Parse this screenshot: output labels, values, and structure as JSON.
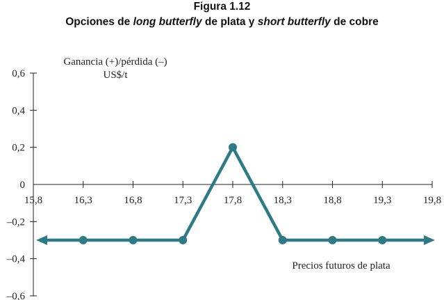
{
  "header": {
    "title": "Figura 1.12",
    "subtitle_parts": [
      "Opciones de ",
      "long butterfly",
      " de plata y ",
      "short butterfly",
      " de cobre"
    ]
  },
  "chart_data": {
    "type": "line",
    "title": "Figura 1.12",
    "subtitle": "Opciones de long butterfly de plata y short butterfly de cobre",
    "ylabel_line1": "Ganancia (+)/pérdida (–)",
    "ylabel_line2": "US$/t",
    "xlabel": "Precios futuros de plata",
    "x_ticks": [
      "15,8",
      "16,3",
      "16,8",
      "17,3",
      "17,8",
      "18,3",
      "18,8",
      "19,3",
      "19,8"
    ],
    "y_ticks": [
      "0,6",
      "0,4",
      "0,2",
      "0",
      "–0,2",
      "–0,4",
      "–0,6"
    ],
    "xlim": [
      15.8,
      19.8
    ],
    "ylim": [
      -0.6,
      0.6
    ],
    "series": [
      {
        "x": [
          16.3,
          16.8,
          17.3,
          17.8,
          18.3,
          18.8,
          19.3
        ],
        "y": [
          -0.3,
          -0.3,
          -0.3,
          0.2,
          -0.3,
          -0.3,
          -0.3
        ],
        "extends_left_to": 15.8,
        "extends_right_to": 19.8,
        "arrows_at_ends": true
      }
    ],
    "colors": {
      "series": "#2e7b87",
      "axis": "#222222"
    },
    "grid": false,
    "legend": "none"
  }
}
